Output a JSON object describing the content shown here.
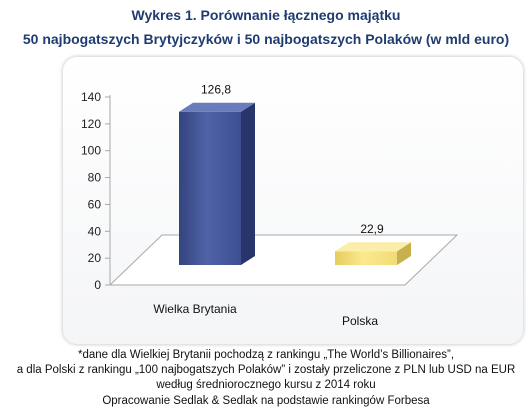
{
  "title_line1": "Wykres 1. Porównanie łącznego majątku",
  "title_line2": "50 najbogatszych Brytyjczyków i 50 najbogatszych Polaków (w mld euro)",
  "notes": {
    "line1": "*dane dla Wielkiej Brytanii pochodzą z rankingu „The World’s Billionaires”,",
    "line2": "a dla Polski z rankingu „100 najbogatszych  Polaków” i zostały przeliczone z PLN lub USD na EUR",
    "line3": "według średniorocznego kursu z 2014 roku",
    "line4": "Opracowanie Sedlak & Sedlak na podstawie rankingów Forbesa"
  },
  "chart_data": {
    "type": "bar",
    "categories": [
      "Wielka Brytania",
      "Polska"
    ],
    "values": [
      126.8,
      22.9
    ],
    "value_labels": [
      "126,8",
      "22,9"
    ],
    "ylim": [
      0,
      140
    ],
    "yticks": [
      0,
      20,
      40,
      60,
      80,
      100,
      120,
      140
    ],
    "grid": false,
    "legend": "none",
    "colors": [
      "#3d4f92",
      "#f0dc78"
    ]
  }
}
